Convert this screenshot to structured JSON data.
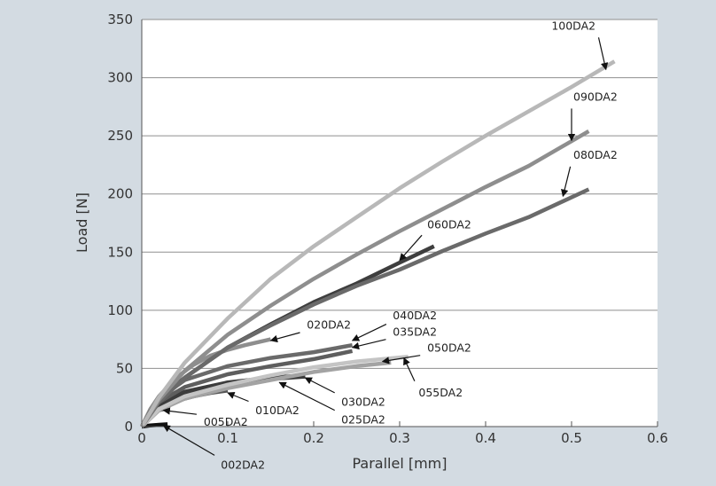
{
  "chart_data": {
    "type": "line",
    "xlabel": "Parallel [mm]",
    "ylabel": "Load [N]",
    "xlim": [
      0,
      0.6
    ],
    "ylim": [
      0,
      350
    ],
    "x_ticks": [
      "0",
      "0.1",
      "0.2",
      "0.3",
      "0.4",
      "0.5",
      "0.6"
    ],
    "y_ticks": [
      "0",
      "50",
      "100",
      "150",
      "200",
      "250",
      "300",
      "350"
    ],
    "grid": "horizontal",
    "legend": "none (series labelled with arrows)",
    "colors": {
      "figure_background": "#d3dbe2",
      "plot_background": "#ffffff",
      "gridline": "#8f8f8f"
    },
    "series": [
      {
        "name": "002DA2",
        "color": "#111111",
        "x": [
          0,
          0.01,
          0.02,
          0.03
        ],
        "y": [
          0,
          1,
          1.5,
          2
        ],
        "label_at": [
          0.09,
          -27
        ],
        "arrow_to": [
          0.025,
          1
        ]
      },
      {
        "name": "005DA2",
        "color": "#2b2b2b",
        "x": [
          0,
          0.005,
          0.01,
          0.02,
          0.03
        ],
        "y": [
          0,
          6,
          10,
          14,
          16
        ],
        "label_at": [
          0.07,
          10
        ],
        "arrow_to": [
          0.025,
          14
        ]
      },
      {
        "name": "010DA2",
        "color": "#555555",
        "x": [
          0,
          0.01,
          0.02,
          0.04,
          0.06,
          0.08,
          0.1
        ],
        "y": [
          0,
          9,
          15,
          22,
          26,
          29,
          31
        ],
        "label_at": [
          0.13,
          20
        ],
        "arrow_to": [
          0.1,
          29
        ]
      },
      {
        "name": "020DA2",
        "color": "#8e8e8e",
        "x": [
          0,
          0.01,
          0.02,
          0.04,
          0.06,
          0.08,
          0.1,
          0.12,
          0.15
        ],
        "y": [
          0,
          15,
          26,
          42,
          53,
          61,
          66,
          70,
          75
        ],
        "label_at": [
          0.19,
          82
        ],
        "arrow_to": [
          0.15,
          74
        ]
      },
      {
        "name": "025DA2",
        "color": "#3c3c3c",
        "x": [
          0,
          0.01,
          0.02,
          0.05,
          0.1,
          0.15,
          0.19
        ],
        "y": [
          0,
          10,
          17,
          28,
          36,
          41,
          43
        ],
        "label_at": [
          0.23,
          12
        ],
        "arrow_to": [
          0.16,
          38
        ]
      },
      {
        "name": "030DA2",
        "color": "#3c3c3c",
        "x": [
          0,
          0.01,
          0.02,
          0.05,
          0.1,
          0.15,
          0.19
        ],
        "y": [
          0,
          11,
          19,
          30,
          38,
          42,
          44
        ],
        "label_at": [
          0.23,
          27
        ],
        "arrow_to": [
          0.19,
          42
        ]
      },
      {
        "name": "035DA2",
        "color": "#5e5e5e",
        "x": [
          0,
          0.01,
          0.02,
          0.05,
          0.1,
          0.15,
          0.2,
          0.245
        ],
        "y": [
          0,
          12,
          21,
          34,
          45,
          52,
          58,
          65
        ],
        "label_at": [
          0.29,
          76
        ],
        "arrow_to": [
          0.245,
          68
        ]
      },
      {
        "name": "040DA2",
        "color": "#6a6a6a",
        "x": [
          0,
          0.01,
          0.02,
          0.05,
          0.1,
          0.15,
          0.2,
          0.245
        ],
        "y": [
          0,
          13,
          24,
          40,
          52,
          59,
          64,
          70
        ],
        "label_at": [
          0.29,
          90
        ],
        "arrow_to": [
          0.245,
          74
        ]
      },
      {
        "name": "050DA2",
        "color": "#a3a3a3",
        "x": [
          0,
          0.02,
          0.05,
          0.1,
          0.15,
          0.2,
          0.25,
          0.29
        ],
        "y": [
          0,
          14,
          24,
          33,
          40,
          47,
          52,
          55
        ],
        "label_at": [
          0.33,
          62
        ],
        "arrow_to": [
          0.28,
          56
        ]
      },
      {
        "name": "055DA2",
        "color": "#c4c4c4",
        "x": [
          0,
          0.02,
          0.05,
          0.1,
          0.15,
          0.2,
          0.25,
          0.31
        ],
        "y": [
          0,
          15,
          26,
          36,
          44,
          51,
          56,
          60
        ],
        "label_at": [
          0.32,
          35
        ],
        "arrow_to": [
          0.305,
          59
        ]
      },
      {
        "name": "060DA2",
        "color": "#3e3e3e",
        "x": [
          0,
          0.01,
          0.02,
          0.05,
          0.1,
          0.15,
          0.2,
          0.25,
          0.3,
          0.34
        ],
        "y": [
          0,
          13,
          24,
          42,
          68,
          88,
          107,
          123,
          141,
          155
        ],
        "label_at": [
          0.33,
          168
        ],
        "arrow_to": [
          0.3,
          143
        ]
      },
      {
        "name": "080DA2",
        "color": "#6a6a6a",
        "x": [
          0,
          0.02,
          0.05,
          0.1,
          0.15,
          0.2,
          0.25,
          0.3,
          0.35,
          0.4,
          0.45,
          0.52
        ],
        "y": [
          0,
          21,
          42,
          68,
          87,
          105,
          121,
          135,
          151,
          166,
          180,
          204
        ],
        "label_at": [
          0.5,
          228
        ],
        "arrow_to": [
          0.49,
          198
        ]
      },
      {
        "name": "090DA2",
        "color": "#8e8e8e",
        "x": [
          0,
          0.02,
          0.05,
          0.1,
          0.15,
          0.2,
          0.25,
          0.3,
          0.35,
          0.4,
          0.45,
          0.52
        ],
        "y": [
          0,
          23,
          48,
          79,
          104,
          127,
          148,
          168,
          187,
          206,
          224,
          254
        ],
        "label_at": [
          0.5,
          278
        ],
        "arrow_to": [
          0.5,
          246
        ]
      },
      {
        "name": "100DA2",
        "color": "#b8b8b8",
        "x": [
          0,
          0.02,
          0.05,
          0.1,
          0.15,
          0.2,
          0.25,
          0.3,
          0.35,
          0.4,
          0.45,
          0.5,
          0.55
        ],
        "y": [
          0,
          25,
          55,
          93,
          127,
          155,
          180,
          205,
          228,
          250,
          271,
          292,
          314
        ],
        "label_at": [
          0.53,
          339
        ],
        "arrow_to": [
          0.54,
          307
        ]
      }
    ]
  }
}
